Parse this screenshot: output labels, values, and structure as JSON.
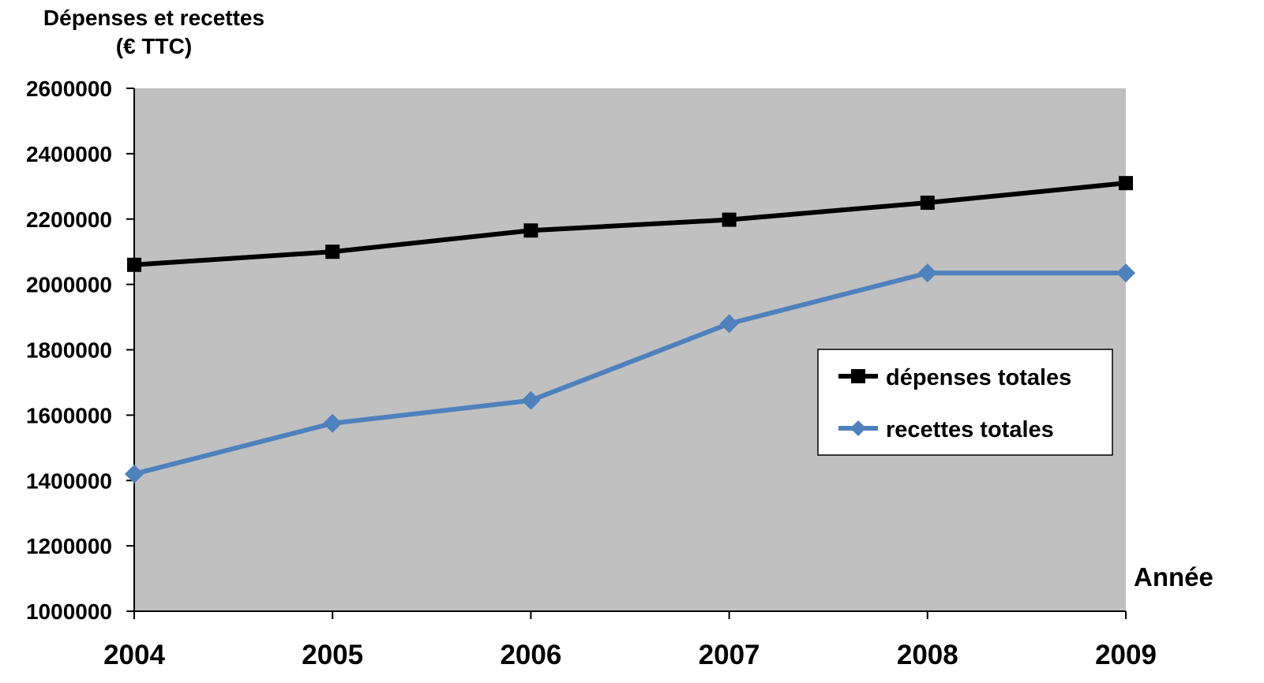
{
  "chart_data": {
    "type": "line",
    "ylabel_lines": [
      "Dépenses et recettes",
      "(€ TTC)"
    ],
    "xlabel": "Année",
    "categories": [
      "2004",
      "2005",
      "2006",
      "2007",
      "2008",
      "2009"
    ],
    "ylim": [
      1000000,
      2600000
    ],
    "yticks": [
      1000000,
      1200000,
      1400000,
      1600000,
      1800000,
      2000000,
      2200000,
      2400000,
      2600000
    ],
    "ytick_labels": [
      "1000000",
      "1200000",
      "1400000",
      "1600000",
      "1800000",
      "2000000",
      "2200000",
      "2400000",
      "2600000"
    ],
    "grid": false,
    "plot_background": "#c0c0c0",
    "legend_position": "right",
    "series": [
      {
        "name": "dépenses totales",
        "values": [
          2060000,
          2100000,
          2165000,
          2198000,
          2250000,
          2310000
        ],
        "color": "#000000",
        "marker": "square"
      },
      {
        "name": "recettes totales",
        "values": [
          1420000,
          1575000,
          1645000,
          1880000,
          2035000,
          2035000
        ],
        "color": "#4f81bd",
        "marker": "diamond"
      }
    ]
  }
}
